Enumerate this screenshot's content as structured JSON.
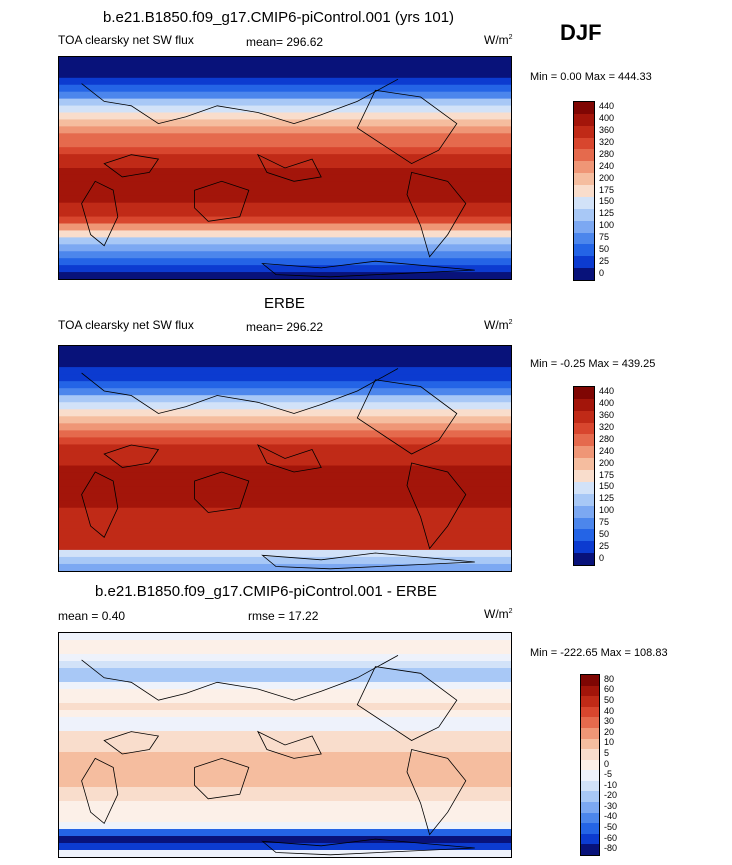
{
  "figure": {
    "title": "b.e21.B1850.f09_g17.CMIP6-piControl.001 (yrs 101)",
    "season": "DJF"
  },
  "colors": {
    "abs": [
      "#08127a",
      "#0c3bd0",
      "#2464e6",
      "#4c86ec",
      "#7ca8f2",
      "#a8c8f6",
      "#d2e2f8",
      "#f9ddcc",
      "#f5bd9f",
      "#ef9676",
      "#e56a4d",
      "#d8462e",
      "#c02a17",
      "#a3150a",
      "#7f0603"
    ],
    "diff": [
      "#08127a",
      "#0c3bd0",
      "#2464e6",
      "#4c86ec",
      "#7ca8f2",
      "#a8c8f6",
      "#d2e2f8",
      "#eef2fb",
      "#fcf0e8",
      "#f9ddcc",
      "#f5bd9f",
      "#ef9676",
      "#e56a4d",
      "#d8462e",
      "#c02a17",
      "#a3150a",
      "#7f0603"
    ]
  },
  "chart_data": [
    {
      "type": "heatmap",
      "name": "model",
      "variable": "TOA clearsky net SW flux",
      "units_label": "W/m",
      "units_sup": "2",
      "mean_text": "mean= 296.62",
      "minmax_text": "Min =   0.00 Max = 444.33",
      "levels": [
        "440",
        "400",
        "360",
        "320",
        "280",
        "240",
        "200",
        "175",
        "150",
        "125",
        "100",
        "75",
        "50",
        "25",
        "0"
      ],
      "lat_profile": [
        0,
        0,
        0,
        1,
        2,
        3,
        5,
        6,
        7,
        8,
        9,
        10,
        10,
        11,
        12,
        12,
        13,
        13,
        13,
        13,
        13,
        12,
        12,
        11,
        9,
        7,
        5,
        4,
        3,
        2,
        1,
        0
      ]
    },
    {
      "type": "heatmap",
      "name": "obs",
      "panel_title": "ERBE",
      "variable": "TOA clearsky net SW flux",
      "units_label": "W/m",
      "units_sup": "2",
      "mean_text": "mean= 296.22",
      "minmax_text": "Min =  -0.25 Max = 439.25",
      "levels": [
        "440",
        "400",
        "360",
        "320",
        "280",
        "240",
        "200",
        "175",
        "150",
        "125",
        "100",
        "75",
        "50",
        "25",
        "0"
      ],
      "lat_profile": [
        0,
        0,
        0,
        1,
        1,
        2,
        3,
        5,
        6,
        7,
        8,
        9,
        10,
        11,
        12,
        12,
        12,
        13,
        13,
        13,
        13,
        13,
        13,
        12,
        12,
        12,
        12,
        12,
        12,
        6,
        5,
        4
      ]
    },
    {
      "type": "heatmap",
      "name": "difference",
      "panel_title": "b.e21.B1850.f09_g17.CMIP6-piControl.001 - ERBE",
      "mean_text": "mean =   0.40",
      "rmse_text": "rmse =  17.22",
      "units_label": "W/m",
      "units_sup": "2",
      "minmax_text": "Min = -222.65 Max = 108.83",
      "levels": [
        "80",
        "60",
        "50",
        "40",
        "30",
        "20",
        "10",
        "5",
        "0",
        "-5",
        "-10",
        "-20",
        "-30",
        "-40",
        "-50",
        "-60",
        "-80"
      ],
      "lat_profile": [
        7,
        8,
        8,
        7,
        6,
        5,
        5,
        7,
        8,
        8,
        9,
        8,
        7,
        7,
        9,
        9,
        9,
        10,
        10,
        10,
        10,
        10,
        9,
        9,
        8,
        8,
        8,
        7,
        2,
        0,
        1,
        7
      ]
    }
  ]
}
